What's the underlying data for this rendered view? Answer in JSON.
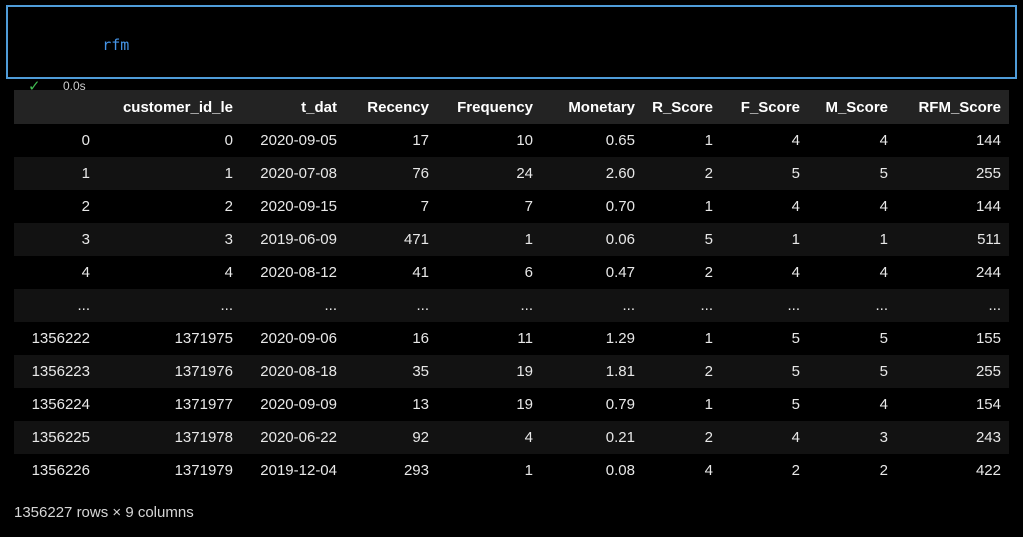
{
  "cell": {
    "code": "rfm",
    "check_glyph": "✓",
    "exec_time": "0.0s"
  },
  "table": {
    "columns": [
      "",
      "customer_id_le",
      "t_dat",
      "Recency",
      "Frequency",
      "Monetary",
      "R_Score",
      "F_Score",
      "M_Score",
      "RFM_Score"
    ],
    "rows": [
      [
        "0",
        "0",
        "2020-09-05",
        "17",
        "10",
        "0.65",
        "1",
        "4",
        "4",
        "144"
      ],
      [
        "1",
        "1",
        "2020-07-08",
        "76",
        "24",
        "2.60",
        "2",
        "5",
        "5",
        "255"
      ],
      [
        "2",
        "2",
        "2020-09-15",
        "7",
        "7",
        "0.70",
        "1",
        "4",
        "4",
        "144"
      ],
      [
        "3",
        "3",
        "2019-06-09",
        "471",
        "1",
        "0.06",
        "5",
        "1",
        "1",
        "511"
      ],
      [
        "4",
        "4",
        "2020-08-12",
        "41",
        "6",
        "0.47",
        "2",
        "4",
        "4",
        "244"
      ],
      [
        "...",
        "...",
        "...",
        "...",
        "...",
        "...",
        "...",
        "...",
        "...",
        "..."
      ],
      [
        "1356222",
        "1371975",
        "2020-09-06",
        "16",
        "11",
        "1.29",
        "1",
        "5",
        "5",
        "155"
      ],
      [
        "1356223",
        "1371976",
        "2020-08-18",
        "35",
        "19",
        "1.81",
        "2",
        "5",
        "5",
        "255"
      ],
      [
        "1356224",
        "1371977",
        "2020-09-09",
        "13",
        "19",
        "0.79",
        "1",
        "5",
        "4",
        "154"
      ],
      [
        "1356225",
        "1371978",
        "2020-06-22",
        "92",
        "4",
        "0.21",
        "2",
        "4",
        "3",
        "243"
      ],
      [
        "1356226",
        "1371979",
        "2019-12-04",
        "293",
        "1",
        "0.08",
        "4",
        "2",
        "2",
        "422"
      ]
    ],
    "footer": "1356227 rows × 9 columns"
  },
  "colors": {
    "background": "#000000",
    "cell_border": "#4f9cd9",
    "code_text": "#4595e8",
    "check_green": "#3fb950",
    "header_bg": "#232323",
    "row_stripe": "#121212",
    "text": "#e8e8e8"
  }
}
